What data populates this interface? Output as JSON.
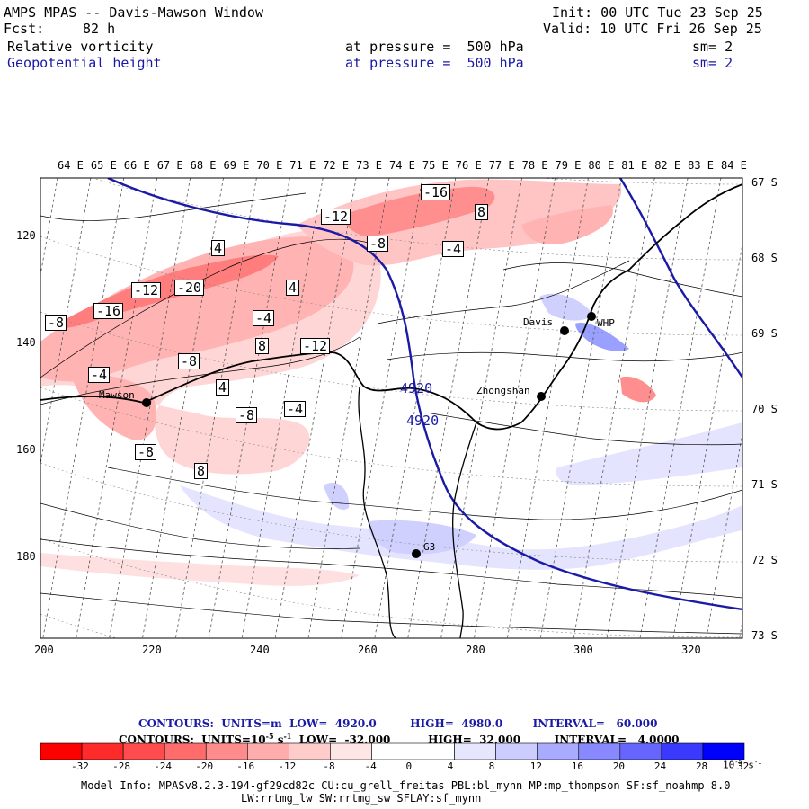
{
  "header": {
    "title": "AMPS MPAS -- Davis-Mawson Window",
    "init": "Init: 00 UTC Tue 23 Sep 25",
    "fcst_label": "Fcst:",
    "fcst_value": "82 h",
    "valid": "Valid: 10 UTC Fri 26 Sep 25",
    "field1": {
      "name": "Relative vorticity",
      "level": "at pressure =  500 hPa",
      "sm": "sm= 2"
    },
    "field2": {
      "name": "Geopotential height",
      "level": "at pressure =  500 hPa",
      "sm": "sm= 2"
    }
  },
  "map": {
    "top_lon_labels": [
      "64 E",
      "65 E",
      "66 E",
      "67 E",
      "68 E",
      "69 E",
      "70 E",
      "71 E",
      "72 E",
      "73 E",
      "74 E",
      "75 E",
      "76 E",
      "77 E",
      "78 E",
      "79 E",
      "80 E",
      "81 E",
      "82 E",
      "83 E",
      "84 E"
    ],
    "right_lat_labels": [
      "67 S",
      "68 S",
      "69 S",
      "70 S",
      "71 S",
      "72 S",
      "73 S"
    ],
    "left_grid_labels": [
      "120",
      "140",
      "160",
      "180"
    ],
    "bottom_grid_labels": [
      "200",
      "220",
      "240",
      "260",
      "280",
      "300",
      "320"
    ],
    "stations": [
      {
        "name": "Mawson"
      },
      {
        "name": "Davis"
      },
      {
        "name": "WHP"
      },
      {
        "name": "Zhongshan"
      },
      {
        "name": "G3"
      }
    ],
    "height_contour_label": "4920",
    "vorticity_labels": [
      "-16",
      "-12",
      "-8",
      "-4",
      "4",
      "8",
      "-20",
      "-12",
      "-16",
      "-8",
      "-4",
      "4",
      "8",
      "-12",
      "-8",
      "4",
      "-8",
      "-4",
      "-4",
      "8",
      "-8"
    ],
    "colors": {
      "height_contour": "#1a1aa6",
      "fill_neg": "#e8484c",
      "fill_pos": "#5a64e8",
      "coast": "#000000"
    }
  },
  "legend": {
    "line1": "CONTOURS:  UNITS=m  LOW=  4920.0         HIGH=  4980.0        INTERVAL=   60.000",
    "line2_a": "CONTOURS:  UNITS=10",
    "line2_b": "-5",
    "line2_c": " s",
    "line2_d": "-1",
    "line2_e": "  LOW=  -32.000          HIGH=  32.000         INTERVAL=   4.0000",
    "colorbar_ticks": [
      "-32",
      "-28",
      "-24",
      "-20",
      "-16",
      "-12",
      "-8",
      "-4",
      "0",
      "4",
      "8",
      "12",
      "16",
      "20",
      "24",
      "28",
      "32"
    ],
    "colorbar_unit_a": "10",
    "colorbar_unit_b": "-5",
    "colorbar_unit_c": " s",
    "colorbar_unit_d": "-1",
    "colorbar_colors": [
      "#ff0000",
      "#ff2a2a",
      "#ff4c4c",
      "#ff6c6c",
      "#ff8c8c",
      "#ffacac",
      "#ffcccc",
      "#ffe6e6",
      "#ffffff",
      "#ffffff",
      "#e6e6ff",
      "#ccccff",
      "#aaaaff",
      "#8888ff",
      "#6666ff",
      "#3a3aff",
      "#0000ff"
    ]
  },
  "footer": {
    "line1": "Model Info: MPASv8.2.3-194-gf29cd82c CU:cu_grell_freitas PBL:bl_mynn MP:mp_thompson SF:sf_noahmp 8.0",
    "line2": "LW:rrtmg_lw SW:rrtmg_sw SFLAY:sf_mynn"
  }
}
